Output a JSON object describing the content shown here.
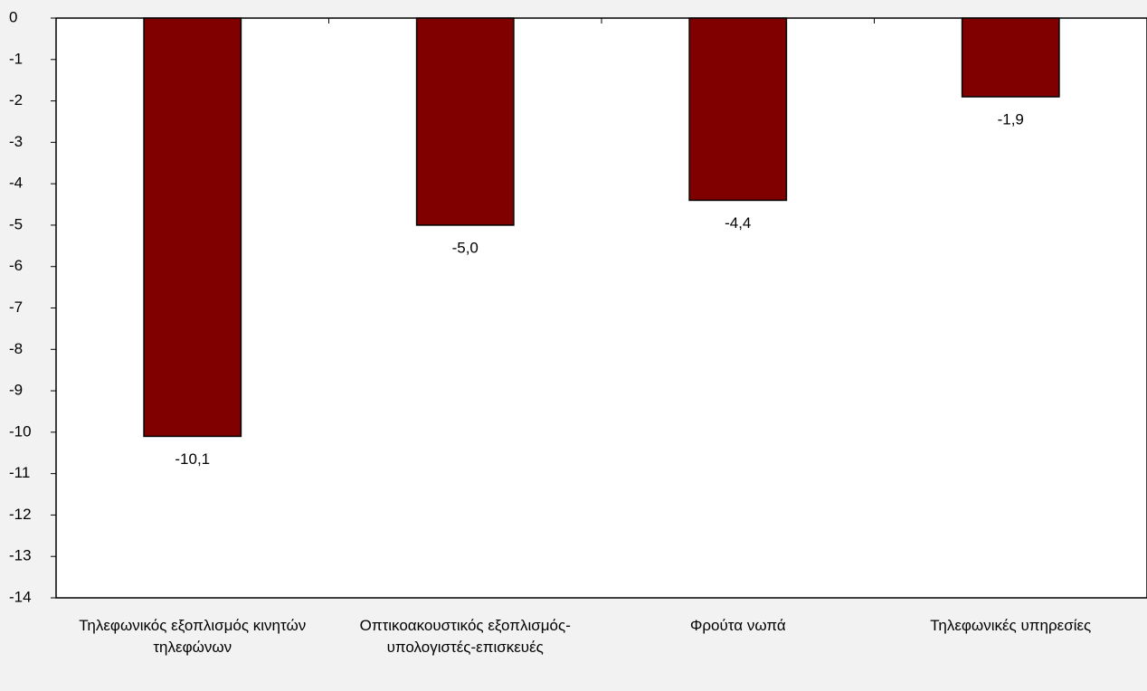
{
  "chart_data": {
    "type": "bar",
    "categories": [
      "Τηλεφωνικός εξοπλισμός κινητών τηλεφώνων",
      "Οπτικοακουστικός εξοπλισμός-υπολογιστές-επισκευές",
      "Φρούτα νωπά",
      "Τηλεφωνικές υπηρεσίες"
    ],
    "values": [
      -10.1,
      -5.0,
      -4.4,
      -1.9
    ],
    "value_labels": [
      "-10,1",
      "-5,0",
      "-4,4",
      "-1,9"
    ],
    "color": "#800000",
    "ylim": [
      -14,
      0
    ],
    "yticks": [
      0,
      -1,
      -2,
      -3,
      -4,
      -5,
      -6,
      -7,
      -8,
      -9,
      -10,
      -11,
      -12,
      -13,
      -14
    ],
    "grid": false
  }
}
